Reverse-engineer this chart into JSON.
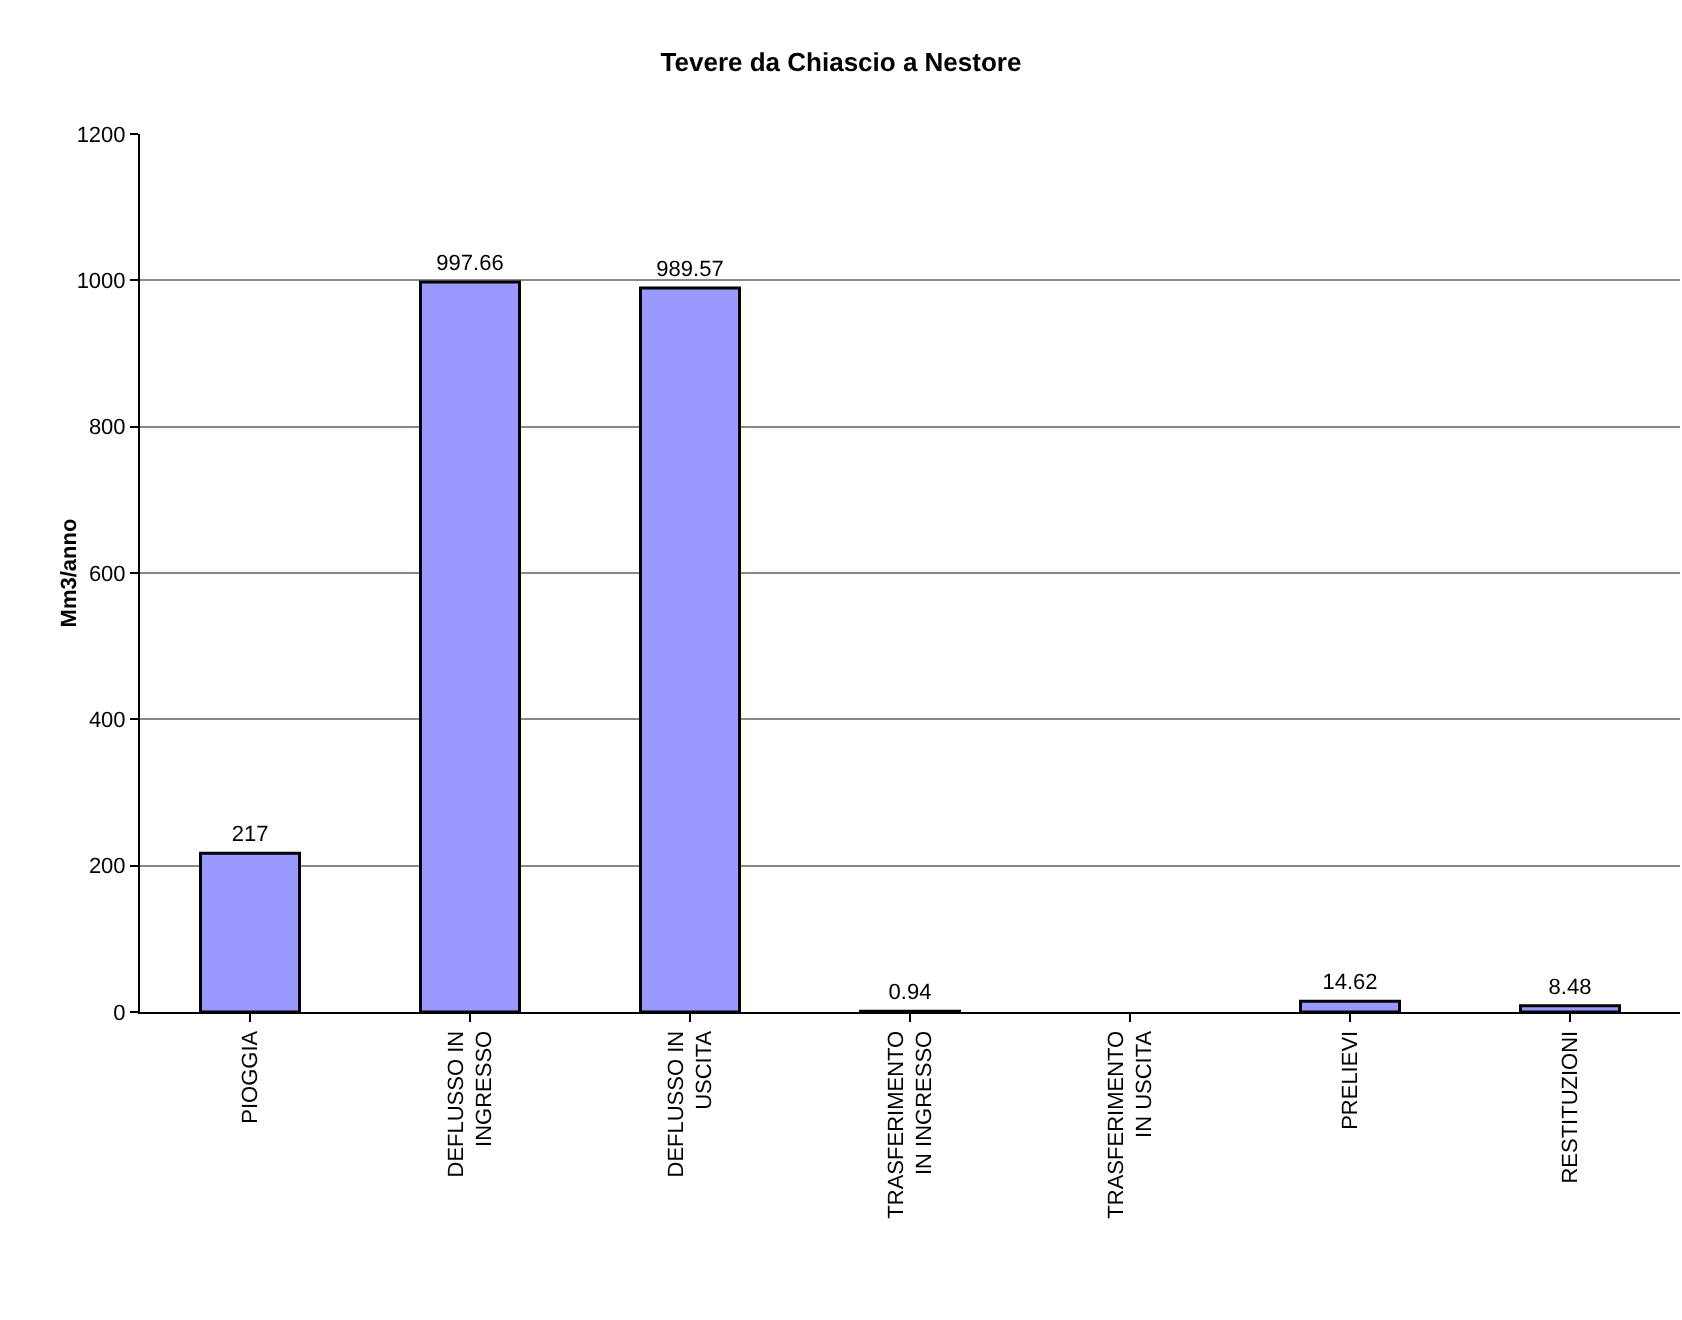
{
  "chart_data": {
    "type": "bar",
    "title": "Tevere da Chiascio a Nestore",
    "ylabel": "Mm3/anno",
    "categories": [
      "PIOGGIA",
      "DEFLUSSO IN INGRESSO",
      "DEFLUSSO IN USCITA",
      "TRASFERIMENTO IN INGRESSO",
      "TRASFERIMENTO IN USCITA",
      "PRELIEVI",
      "RESTITUZIONI"
    ],
    "values": [
      217,
      997.66,
      989.57,
      0.94,
      null,
      14.62,
      8.48
    ],
    "color": "#9999ff",
    "ylim": [
      0,
      1200
    ],
    "yticks": [
      0,
      200,
      400,
      600,
      800,
      1000,
      1200
    ],
    "grid": "y",
    "data_labels": true
  }
}
